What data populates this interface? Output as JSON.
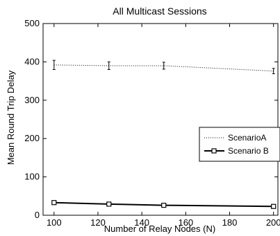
{
  "chart_data": {
    "type": "line",
    "title": "All Multicast Sessions",
    "xlabel": "Number of Relay Nodes (N)",
    "ylabel": "Mean Round Trip Delay",
    "x": [
      100,
      125,
      150,
      200
    ],
    "xlim": [
      95,
      202
    ],
    "ylim": [
      0,
      500
    ],
    "xticks": [
      100,
      120,
      140,
      160,
      180,
      200
    ],
    "xtick_labels": [
      "100",
      "120",
      "140",
      "160",
      "180",
      "200"
    ],
    "yticks": [
      0,
      100,
      200,
      300,
      400,
      500
    ],
    "ytick_labels": [
      "0",
      "100",
      "200",
      "300",
      "400",
      "500"
    ],
    "grid": false,
    "legend_position": "right",
    "series": [
      {
        "name": "ScenarioA",
        "values": [
          392,
          390,
          390,
          376
        ],
        "error": [
          12,
          10,
          9,
          7
        ],
        "color": "#000000",
        "style": "dotted",
        "marker": "none"
      },
      {
        "name": "Scenario B",
        "values": [
          33,
          29,
          26,
          23
        ],
        "error": [
          4,
          3,
          3,
          3
        ],
        "color": "#000000",
        "style": "solid",
        "marker": "square"
      }
    ]
  }
}
